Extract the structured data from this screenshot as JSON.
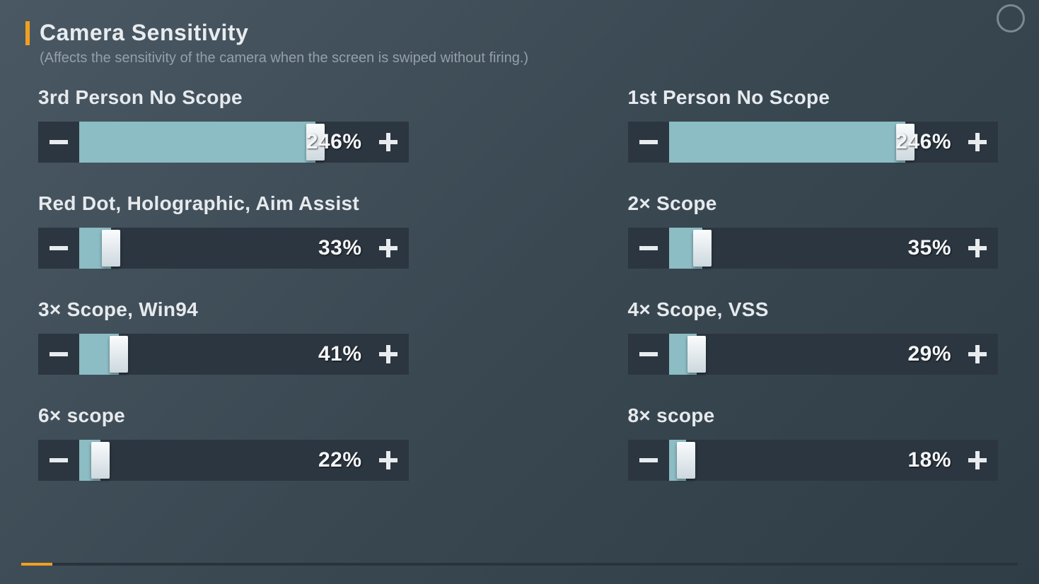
{
  "header": {
    "title": "Camera Sensitivity",
    "subtitle": "(Affects the sensitivity of the camera when the screen is swiped without firing.)"
  },
  "colors": {
    "accent": "#f0a020",
    "fill": "#8cbcc4",
    "track": "#2c3640",
    "text": "#e6eaed",
    "subtext": "#93a0aa",
    "handle_top": "#fafcfd",
    "handle_bottom": "#cdd8de",
    "background_from": "#4a5864",
    "background_to": "#2f3d47"
  },
  "slider_max": 300,
  "sliders": [
    {
      "id": "3p-no-scope",
      "label": "3rd Person No Scope",
      "value": 246,
      "display": "246%"
    },
    {
      "id": "1p-no-scope",
      "label": "1st Person No Scope",
      "value": 246,
      "display": "246%"
    },
    {
      "id": "red-dot",
      "label": "Red Dot, Holographic, Aim Assist",
      "value": 33,
      "display": "33%"
    },
    {
      "id": "2x-scope",
      "label": "2× Scope",
      "value": 35,
      "display": "35%"
    },
    {
      "id": "3x-scope",
      "label": "3× Scope, Win94",
      "value": 41,
      "display": "41%"
    },
    {
      "id": "4x-scope",
      "label": "4× Scope, VSS",
      "value": 29,
      "display": "29%"
    },
    {
      "id": "6x-scope",
      "label": "6× scope",
      "value": 22,
      "display": "22%"
    },
    {
      "id": "8x-scope",
      "label": "8× scope",
      "value": 18,
      "display": "18%"
    }
  ]
}
